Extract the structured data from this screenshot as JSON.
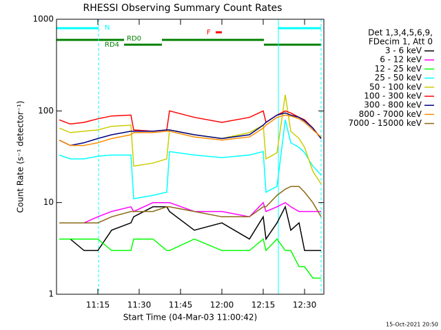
{
  "chart_data": {
    "type": "line",
    "title": "RHESSI Observing Summary Count Rates",
    "xlabel": "Start Time (04-Mar-03 11:00:42)",
    "ylabel": "Count Rate (s⁻¹ detector⁻¹)",
    "legend_header": [
      "Det 1,3,4,5,6,9,",
      "FDecim 1, Att 0"
    ],
    "footer": "15-Oct-2021 20:50",
    "annotations": [
      "N",
      "RD0",
      "RD4",
      "F"
    ],
    "log_y": true,
    "x": [
      "11:01",
      "11:05",
      "11:10",
      "11:15",
      "11:20",
      "11:27",
      "11:28",
      "11:35",
      "11:40",
      "11:41",
      "11:50",
      "12:00",
      "12:10",
      "12:15",
      "12:16",
      "12:20",
      "12:23",
      "12:25",
      "12:28",
      "12:30",
      "12:33",
      "12:36"
    ],
    "xlim": [
      "11:00",
      "12:37"
    ],
    "xticks": [
      {
        "value": "11:15",
        "label": "11:15"
      },
      {
        "value": "11:30",
        "label": "11:30"
      },
      {
        "value": "11:45",
        "label": "11:45"
      },
      {
        "value": "12:00",
        "label": "12:00"
      },
      {
        "value": "12:15",
        "label": "12:15"
      },
      {
        "value": "12:30",
        "label": "12:30"
      }
    ],
    "ylim": [
      1,
      1000
    ],
    "yticks": [
      1,
      10,
      100,
      1000
    ],
    "series": [
      {
        "name": "3 - 6 keV",
        "color": "#000000",
        "values": [
          4,
          4,
          3,
          3,
          5,
          6,
          7,
          9,
          9,
          8,
          5,
          6,
          4,
          7,
          4,
          6,
          9,
          5,
          6,
          3,
          3,
          3
        ]
      },
      {
        "name": "6 - 12 keV",
        "color": "#ff00ff",
        "values": [
          6,
          6,
          6,
          7,
          8,
          9,
          8,
          10,
          10,
          10,
          8,
          8,
          7,
          10,
          8,
          9,
          10,
          9,
          8,
          8,
          8,
          8
        ]
      },
      {
        "name": "12 - 25 keV",
        "color": "#00ff00",
        "values": [
          4,
          4,
          4,
          4,
          3,
          3,
          4,
          4,
          3,
          3,
          4,
          3,
          3,
          4,
          3,
          4,
          3,
          3,
          2,
          2,
          1.5,
          1.5
        ]
      },
      {
        "name": "25 - 50 keV",
        "color": "#00ffff",
        "values": [
          33,
          30,
          30,
          32,
          33,
          33,
          11,
          12,
          13,
          36,
          33,
          31,
          33,
          36,
          13,
          15,
          80,
          45,
          40,
          35,
          25,
          20
        ]
      },
      {
        "name": "50 - 100 keV",
        "color": "#cccc00",
        "values": [
          65,
          58,
          60,
          62,
          68,
          70,
          25,
          27,
          30,
          62,
          55,
          50,
          58,
          70,
          30,
          35,
          150,
          60,
          50,
          40,
          22,
          16
        ]
      },
      {
        "name": "100 - 300 keV",
        "color": "#ff0000",
        "values": [
          80,
          72,
          75,
          82,
          88,
          90,
          62,
          60,
          62,
          100,
          85,
          75,
          85,
          100,
          75,
          90,
          100,
          95,
          85,
          80,
          65,
          50
        ]
      },
      {
        "name": "300 - 800 keV",
        "color": "#000080",
        "values": [
          48,
          42,
          45,
          50,
          55,
          60,
          60,
          60,
          62,
          62,
          55,
          50,
          55,
          70,
          75,
          90,
          95,
          90,
          85,
          78,
          65,
          50
        ]
      },
      {
        "name": "800 - 7000 keV",
        "color": "#ff8c00",
        "values": [
          48,
          42,
          42,
          45,
          50,
          55,
          58,
          58,
          60,
          60,
          52,
          48,
          52,
          65,
          70,
          85,
          90,
          88,
          82,
          75,
          62,
          52
        ]
      },
      {
        "name": "7000 - 15000 keV",
        "color": "#8b6914",
        "values": [
          6,
          6,
          6,
          6,
          7,
          8,
          8,
          8,
          9,
          9,
          8,
          7,
          7,
          9,
          9,
          12,
          14,
          15,
          15,
          13,
          10,
          7
        ]
      }
    ]
  }
}
